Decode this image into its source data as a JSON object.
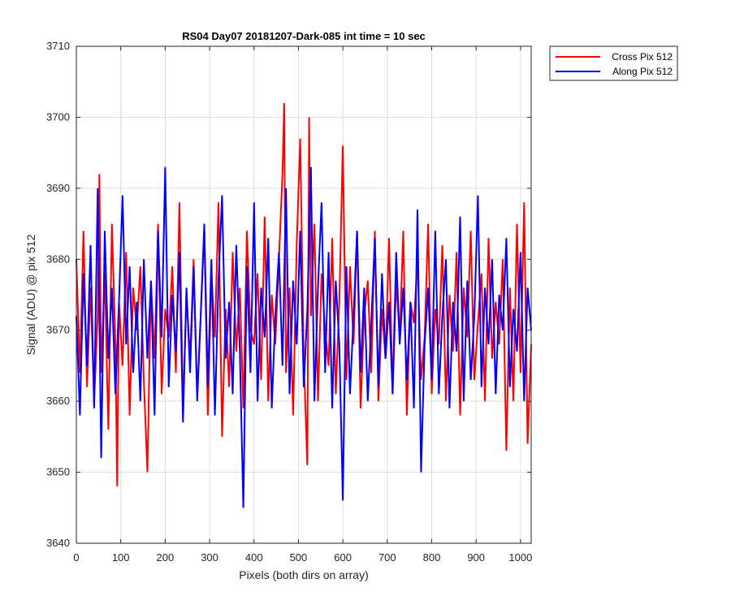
{
  "chart_data": {
    "type": "line",
    "title": "RS04 Day07 20181207-Dark-085 int time = 10 sec",
    "xlabel": "Pixels (both dirs on array)",
    "ylabel": "Signal (ADU) @ pix 512",
    "xlim": [
      0,
      1024
    ],
    "ylim": [
      3640,
      3710
    ],
    "xticks": [
      0,
      100,
      200,
      300,
      400,
      500,
      600,
      700,
      800,
      900,
      1000
    ],
    "yticks": [
      3640,
      3650,
      3660,
      3670,
      3680,
      3690,
      3700,
      3710
    ],
    "grid": true,
    "legend_position": "outside-top-right",
    "series": [
      {
        "name": "Cross Pix 512",
        "color": "#ff0000",
        "x": [
          0,
          8,
          16,
          24,
          32,
          40,
          48,
          52,
          56,
          64,
          72,
          80,
          88,
          92,
          96,
          104,
          112,
          120,
          128,
          136,
          144,
          152,
          160,
          168,
          176,
          184,
          192,
          200,
          208,
          216,
          224,
          232,
          240,
          248,
          256,
          264,
          272,
          280,
          288,
          296,
          304,
          312,
          320,
          328,
          336,
          344,
          352,
          360,
          368,
          376,
          384,
          392,
          400,
          408,
          416,
          424,
          432,
          440,
          448,
          456,
          464,
          468,
          472,
          480,
          488,
          496,
          504,
          512,
          520,
          524,
          528,
          536,
          544,
          552,
          560,
          568,
          576,
          584,
          592,
          600,
          608,
          616,
          624,
          632,
          640,
          648,
          656,
          664,
          672,
          680,
          688,
          696,
          704,
          712,
          720,
          728,
          736,
          744,
          752,
          760,
          768,
          776,
          784,
          792,
          800,
          808,
          816,
          824,
          832,
          840,
          848,
          856,
          864,
          872,
          880,
          888,
          896,
          904,
          912,
          920,
          928,
          936,
          944,
          952,
          960,
          968,
          976,
          984,
          992,
          1000,
          1008,
          1016,
          1024
        ],
        "values": [
          3680,
          3664,
          3684,
          3662,
          3676,
          3660,
          3672,
          3692,
          3664,
          3678,
          3656,
          3685,
          3668,
          3648,
          3674,
          3665,
          3681,
          3658,
          3676,
          3670,
          3679,
          3663,
          3650,
          3677,
          3666,
          3685,
          3661,
          3673,
          3669,
          3679,
          3664,
          3688,
          3659,
          3675,
          3666,
          3680,
          3661,
          3672,
          3684,
          3658,
          3678,
          3669,
          3688,
          3655,
          3673,
          3662,
          3681,
          3667,
          3676,
          3659,
          3684,
          3670,
          3668,
          3678,
          3663,
          3686,
          3660,
          3675,
          3668,
          3680,
          3692,
          3702,
          3664,
          3676,
          3658,
          3682,
          3697,
          3666,
          3651,
          3700,
          3672,
          3685,
          3660,
          3678,
          3670,
          3665,
          3683,
          3661,
          3674,
          3696,
          3663,
          3679,
          3668,
          3684,
          3659,
          3672,
          3677,
          3664,
          3684,
          3660,
          3673,
          3666,
          3683,
          3661,
          3677,
          3669,
          3684,
          3658,
          3674,
          3671,
          3680,
          3663,
          3669,
          3685,
          3661,
          3673,
          3668,
          3682,
          3660,
          3675,
          3667,
          3681,
          3658,
          3676,
          3669,
          3684,
          3663,
          3671,
          3678,
          3660,
          3683,
          3666,
          3674,
          3668,
          3680,
          3653,
          3676,
          3660,
          3685,
          3664,
          3688,
          3654,
          3668
        ]
      },
      {
        "name": "Along Pix 512",
        "color": "#0000ff",
        "x": [
          0,
          8,
          16,
          24,
          32,
          40,
          48,
          56,
          64,
          72,
          80,
          88,
          96,
          104,
          112,
          120,
          128,
          136,
          144,
          152,
          160,
          168,
          176,
          184,
          192,
          200,
          208,
          216,
          224,
          232,
          240,
          248,
          256,
          264,
          272,
          280,
          288,
          296,
          304,
          312,
          320,
          328,
          336,
          344,
          352,
          360,
          368,
          376,
          384,
          392,
          400,
          408,
          416,
          424,
          432,
          440,
          448,
          456,
          464,
          472,
          480,
          488,
          496,
          504,
          512,
          520,
          528,
          536,
          544,
          552,
          560,
          568,
          576,
          584,
          592,
          600,
          608,
          616,
          624,
          632,
          640,
          648,
          656,
          664,
          672,
          680,
          688,
          696,
          704,
          712,
          720,
          728,
          736,
          744,
          752,
          760,
          768,
          776,
          784,
          792,
          800,
          808,
          816,
          824,
          832,
          840,
          848,
          856,
          864,
          872,
          880,
          888,
          896,
          904,
          912,
          920,
          928,
          936,
          944,
          952,
          960,
          968,
          976,
          984,
          992,
          1000,
          1008,
          1016,
          1024
        ],
        "values": [
          3672,
          3658,
          3678,
          3665,
          3682,
          3659,
          3690,
          3652,
          3684,
          3666,
          3676,
          3661,
          3674,
          3689,
          3668,
          3679,
          3664,
          3674,
          3660,
          3680,
          3666,
          3677,
          3658,
          3684,
          3669,
          3693,
          3662,
          3675,
          3667,
          3681,
          3657,
          3676,
          3664,
          3679,
          3660,
          3672,
          3685,
          3662,
          3680,
          3658,
          3677,
          3689,
          3666,
          3674,
          3661,
          3682,
          3667,
          3645,
          3679,
          3664,
          3688,
          3660,
          3676,
          3669,
          3683,
          3659,
          3672,
          3681,
          3665,
          3690,
          3661,
          3677,
          3668,
          3684,
          3662,
          3673,
          3693,
          3660,
          3676,
          3688,
          3664,
          3681,
          3659,
          3677,
          3668,
          3646,
          3679,
          3661,
          3672,
          3684,
          3664,
          3676,
          3660,
          3671,
          3683,
          3662,
          3678,
          3666,
          3674,
          3661,
          3681,
          3668,
          3676,
          3663,
          3674,
          3659,
          3687,
          3650,
          3668,
          3676,
          3663,
          3684,
          3661,
          3672,
          3680,
          3659,
          3674,
          3667,
          3686,
          3660,
          3677,
          3663,
          3672,
          3689,
          3662,
          3676,
          3668,
          3680,
          3661,
          3675,
          3670,
          3683,
          3662,
          3673,
          3667,
          3681,
          3660,
          3676,
          3670
        ]
      }
    ]
  }
}
